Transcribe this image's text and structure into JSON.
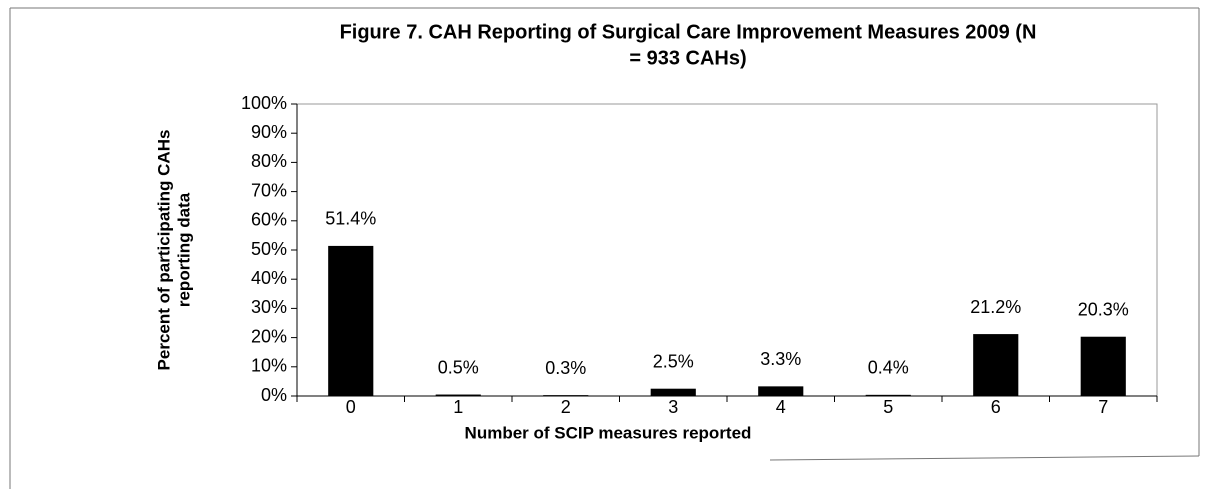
{
  "chart_data": {
    "type": "bar",
    "title": [
      "Figure 7. CAH Reporting of Surgical Care Improvement Measures 2009 (N",
      "= 933 CAHs)"
    ],
    "y_label": [
      "Percent of participating CAHs",
      "reporting data"
    ],
    "x_label": "Number of SCIP measures reported",
    "categories": [
      "0",
      "1",
      "2",
      "3",
      "4",
      "5",
      "6",
      "7"
    ],
    "values": [
      51.4,
      0.5,
      0.3,
      2.5,
      3.3,
      0.4,
      21.2,
      20.3
    ],
    "value_labels": [
      "51.4%",
      "0.5%",
      "0.3%",
      "2.5%",
      "3.3%",
      "0.4%",
      "21.2%",
      "20.3%"
    ],
    "color": "#000000",
    "ylim": [
      0,
      100
    ],
    "yticks": [
      {
        "value": 0,
        "label": "0%"
      },
      {
        "value": 10,
        "label": "10%"
      },
      {
        "value": 20,
        "label": "20%"
      },
      {
        "value": 30,
        "label": "30%"
      },
      {
        "value": 40,
        "label": "40%"
      },
      {
        "value": 50,
        "label": "50%"
      },
      {
        "value": 60,
        "label": "60%"
      },
      {
        "value": 70,
        "label": "70%"
      },
      {
        "value": 80,
        "label": "80%"
      },
      {
        "value": 90,
        "label": "90%"
      },
      {
        "value": 100,
        "label": "100%"
      }
    ],
    "grid": false
  }
}
